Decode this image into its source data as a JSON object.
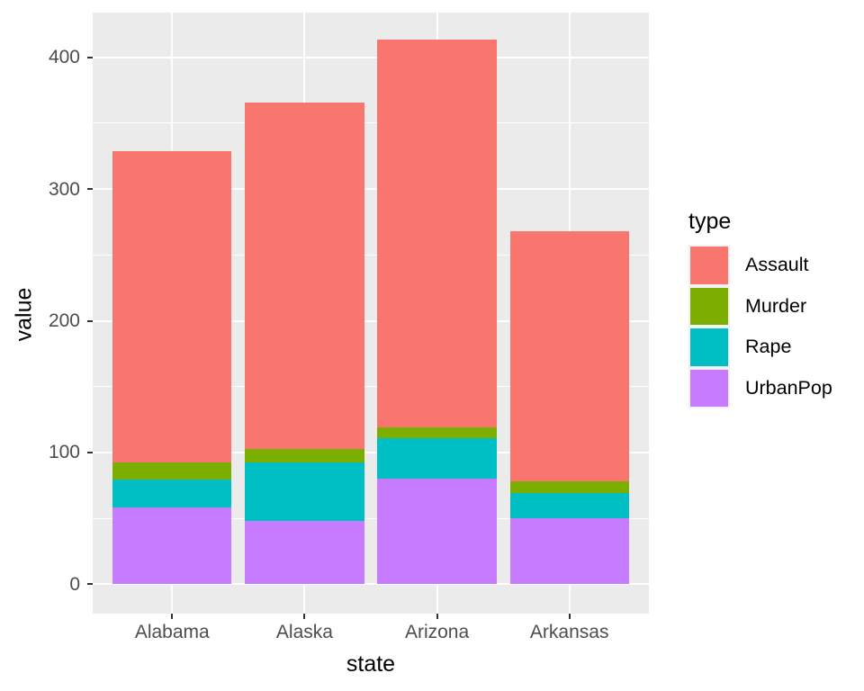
{
  "chart_data": {
    "type": "bar",
    "stacked": true,
    "xlabel": "state",
    "ylabel": "value",
    "categories": [
      "Alabama",
      "Alaska",
      "Arizona",
      "Arkansas"
    ],
    "series": [
      {
        "name": "UrbanPop",
        "color": "#C77CFF",
        "values": [
          58,
          48,
          80,
          50
        ]
      },
      {
        "name": "Rape",
        "color": "#00BFC4",
        "values": [
          21.2,
          44.5,
          31.0,
          19.5
        ]
      },
      {
        "name": "Murder",
        "color": "#7CAE00",
        "values": [
          13.2,
          10.0,
          8.1,
          8.8
        ]
      },
      {
        "name": "Assault",
        "color": "#F8766D",
        "values": [
          236,
          263,
          294,
          190
        ]
      }
    ],
    "stack_totals": [
      328.4,
      365.5,
      413.1,
      268.3
    ],
    "legend": {
      "title": "type",
      "order": [
        "Assault",
        "Murder",
        "Rape",
        "UrbanPop"
      ]
    },
    "y_ticks": [
      0,
      100,
      200,
      300,
      400
    ],
    "y_minor_ticks": [
      50,
      150,
      250,
      350
    ],
    "ylim": [
      -20.7,
      434
    ],
    "grid": true,
    "legend_position": "right",
    "colors": {
      "panel_bg": "#EBEBEB",
      "grid": "#FFFFFF",
      "tick": "#333333",
      "tick_label": "#4D4D4D",
      "axis_title": "#000000",
      "legend_key_bg": "#F2F2F2"
    }
  }
}
